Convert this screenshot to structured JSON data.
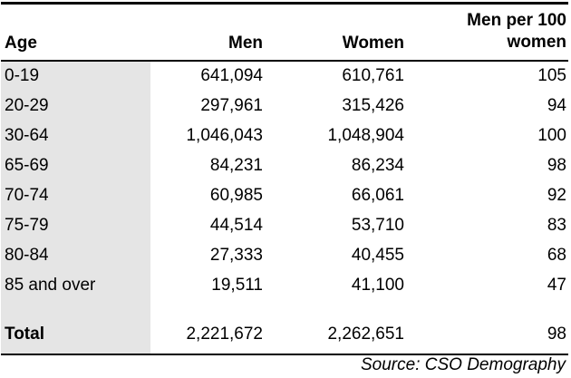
{
  "table": {
    "headers": {
      "age": "Age",
      "men": "Men",
      "women": "Women",
      "ratio_line1": "Men per 100",
      "ratio_line2": "women"
    },
    "rows": [
      {
        "age": "0-19",
        "men": "641,094",
        "women": "610,761",
        "ratio": "105"
      },
      {
        "age": "20-29",
        "men": "297,961",
        "women": "315,426",
        "ratio": "94"
      },
      {
        "age": "30-64",
        "men": "1,046,043",
        "women": "1,048,904",
        "ratio": "100"
      },
      {
        "age": "65-69",
        "men": "84,231",
        "women": "86,234",
        "ratio": "98"
      },
      {
        "age": "70-74",
        "men": "60,985",
        "women": "66,061",
        "ratio": "92"
      },
      {
        "age": "75-79",
        "men": "44,514",
        "women": "53,710",
        "ratio": "83"
      },
      {
        "age": "80-84",
        "men": "27,333",
        "women": "40,455",
        "ratio": "68"
      },
      {
        "age": "85 and over",
        "men": "19,511",
        "women": "41,100",
        "ratio": "47"
      }
    ],
    "total": {
      "age": "Total",
      "men": "2,221,672",
      "women": "2,262,651",
      "ratio": "98"
    },
    "source": "Source: CSO Demography"
  },
  "colors": {
    "age_column_shade": "#e5e5e5",
    "rule": "#000000"
  }
}
